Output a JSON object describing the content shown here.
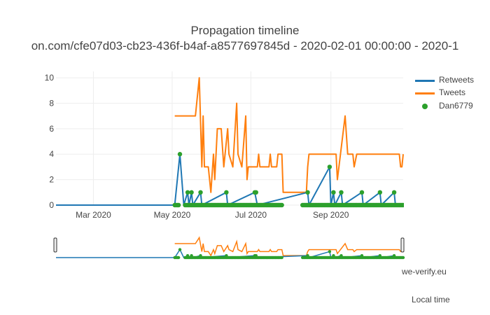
{
  "chart_data": {
    "type": "line",
    "title": "Propagation timeline",
    "subtitle": "on.com/cfe07d03-cb23-436f-b4af-a8577697845d - 2020-02-01 00:00:00 - 2020-1",
    "xlabel": "Local time",
    "ylabel": "",
    "credit": "we-verify.eu",
    "x_range": [
      "2020-02-01",
      "2020-10-27"
    ],
    "ylim": [
      0,
      10.5
    ],
    "y_ticks": [
      0,
      2,
      4,
      6,
      8,
      10
    ],
    "x_ticks": [
      {
        "value": "2020-03-01",
        "label": "Mar 2020"
      },
      {
        "value": "2020-05-01",
        "label": "May 2020"
      },
      {
        "value": "2020-07-01",
        "label": "Jul 2020"
      },
      {
        "value": "2020-09-01",
        "label": "Sep 2020"
      }
    ],
    "grid": true,
    "legend_position": "top-right",
    "rangeslider": true,
    "series": [
      {
        "name": "Retweets",
        "mode": "lines",
        "color": "#1f77b4",
        "points": [
          [
            "2020-02-01",
            0
          ],
          [
            "2020-05-03",
            0
          ],
          [
            "2020-05-07",
            4
          ],
          [
            "2020-05-10",
            0
          ],
          [
            "2020-05-13",
            1
          ],
          [
            "2020-05-14",
            0
          ],
          [
            "2020-05-16",
            1
          ],
          [
            "2020-05-17",
            0
          ],
          [
            "2020-05-23",
            1
          ],
          [
            "2020-05-24",
            0
          ],
          [
            "2020-06-12",
            1
          ],
          [
            "2020-06-13",
            0
          ],
          [
            "2020-07-04",
            1
          ],
          [
            "2020-07-06",
            0
          ],
          [
            "2020-08-14",
            1
          ],
          [
            "2020-08-15",
            0
          ],
          [
            "2020-08-31",
            3
          ],
          [
            "2020-09-01",
            0
          ],
          [
            "2020-09-03",
            1
          ],
          [
            "2020-09-04",
            0
          ],
          [
            "2020-09-09",
            1
          ],
          [
            "2020-09-10",
            0
          ],
          [
            "2020-09-25",
            1
          ],
          [
            "2020-09-26",
            0
          ],
          [
            "2020-10-09",
            1
          ],
          [
            "2020-10-10",
            0
          ],
          [
            "2020-10-20",
            1
          ],
          [
            "2020-10-21",
            0
          ],
          [
            "2020-10-27",
            0
          ]
        ]
      },
      {
        "name": "Tweets",
        "mode": "lines",
        "color": "#ff7f0e",
        "points": [
          [
            "2020-05-03",
            7
          ],
          [
            "2020-05-19",
            7
          ],
          [
            "2020-05-22",
            10
          ],
          [
            "2020-05-24",
            3
          ],
          [
            "2020-05-25",
            7
          ],
          [
            "2020-05-26",
            3
          ],
          [
            "2020-05-29",
            3
          ],
          [
            "2020-05-31",
            1
          ],
          [
            "2020-06-02",
            4
          ],
          [
            "2020-06-03",
            2
          ],
          [
            "2020-06-05",
            6
          ],
          [
            "2020-06-08",
            6
          ],
          [
            "2020-06-10",
            3
          ],
          [
            "2020-06-13",
            6
          ],
          [
            "2020-06-14",
            4
          ],
          [
            "2020-06-17",
            3
          ],
          [
            "2020-06-20",
            8
          ],
          [
            "2020-06-21",
            4
          ],
          [
            "2020-06-24",
            3
          ],
          [
            "2020-06-27",
            7
          ],
          [
            "2020-06-28",
            2
          ],
          [
            "2020-06-29",
            3
          ],
          [
            "2020-07-06",
            3
          ],
          [
            "2020-07-07",
            4
          ],
          [
            "2020-07-08",
            3
          ],
          [
            "2020-07-15",
            3
          ],
          [
            "2020-07-16",
            4
          ],
          [
            "2020-07-17",
            3
          ],
          [
            "2020-07-21",
            3
          ],
          [
            "2020-07-22",
            4
          ],
          [
            "2020-07-25",
            4
          ],
          [
            "2020-07-26",
            1
          ],
          [
            "2020-08-13",
            1
          ],
          [
            "2020-08-14",
            3
          ],
          [
            "2020-08-15",
            4
          ],
          [
            "2020-09-05",
            4
          ],
          [
            "2020-09-06",
            2
          ],
          [
            "2020-09-12",
            7
          ],
          [
            "2020-09-14",
            4
          ],
          [
            "2020-09-18",
            4
          ],
          [
            "2020-09-19",
            3
          ],
          [
            "2020-09-21",
            4
          ],
          [
            "2020-10-24",
            4
          ],
          [
            "2020-10-25",
            3
          ],
          [
            "2020-10-26",
            3
          ],
          [
            "2020-10-27",
            4
          ]
        ]
      },
      {
        "name": "Dan6779",
        "mode": "markers",
        "color": "#2ca02c",
        "points": [
          [
            "2020-05-07",
            4
          ],
          [
            "2020-05-13",
            1
          ],
          [
            "2020-05-16",
            1
          ],
          [
            "2020-05-23",
            1
          ],
          [
            "2020-06-12",
            1
          ],
          [
            "2020-07-04",
            1
          ],
          [
            "2020-07-05",
            1
          ],
          [
            "2020-08-14",
            1
          ],
          [
            "2020-08-31",
            3
          ],
          [
            "2020-09-03",
            1
          ],
          [
            "2020-09-09",
            1
          ],
          [
            "2020-09-25",
            1
          ],
          [
            "2020-10-09",
            1
          ],
          [
            "2020-10-20",
            1
          ]
        ],
        "baseline_ranges": [
          [
            "2020-05-03",
            "2020-05-06"
          ],
          [
            "2020-05-11",
            "2020-07-25"
          ],
          [
            "2020-08-10",
            "2020-10-27"
          ]
        ],
        "baseline_value": 0
      }
    ]
  }
}
